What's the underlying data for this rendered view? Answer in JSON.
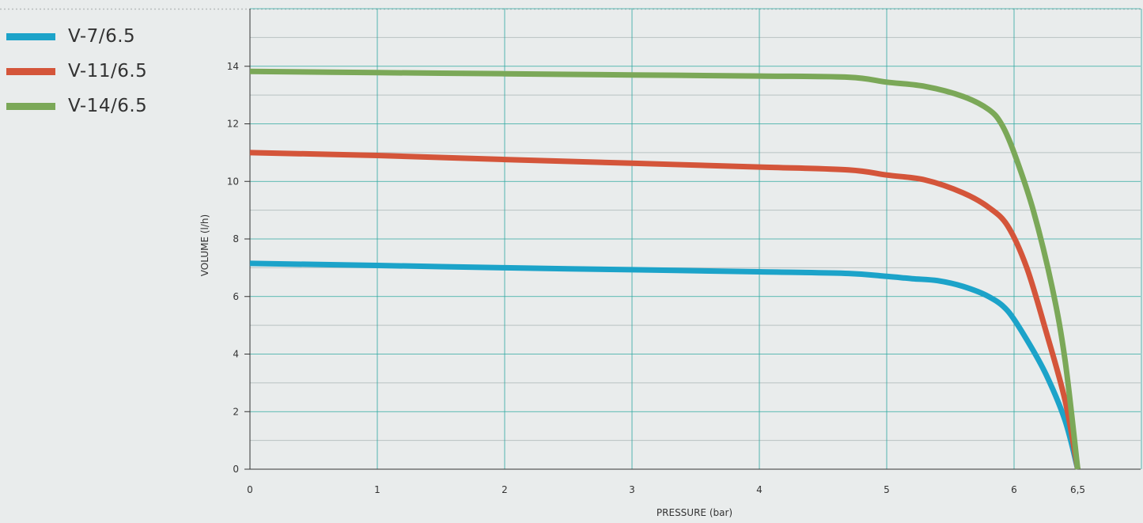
{
  "chart_data": {
    "type": "line",
    "xlabel": "PRESSURE  (bar)",
    "ylabel": "VOLUME (l/h)",
    "x_ticks": [
      "0",
      "1",
      "2",
      "3",
      "4",
      "5",
      "6",
      "6,5"
    ],
    "y_ticks": [
      "0",
      "2",
      "4",
      "6",
      "8",
      "10",
      "12",
      "14"
    ],
    "xlim": [
      0,
      7
    ],
    "ylim": [
      0,
      16
    ],
    "grid": true,
    "legend_position": "top-left",
    "series": [
      {
        "name": "V-7/6.5",
        "color": "#1ca3c9",
        "points": [
          [
            0,
            7.15
          ],
          [
            1,
            7.08
          ],
          [
            2,
            7.0
          ],
          [
            3,
            6.93
          ],
          [
            4,
            6.86
          ],
          [
            4.7,
            6.8
          ],
          [
            5.0,
            6.7
          ],
          [
            5.2,
            6.62
          ],
          [
            5.4,
            6.55
          ],
          [
            5.6,
            6.35
          ],
          [
            5.8,
            6.0
          ],
          [
            5.95,
            5.5
          ],
          [
            6.1,
            4.5
          ],
          [
            6.25,
            3.3
          ],
          [
            6.4,
            1.7
          ],
          [
            6.5,
            0
          ]
        ]
      },
      {
        "name": "V-11/6.5",
        "color": "#d4553a",
        "points": [
          [
            0,
            11.0
          ],
          [
            1,
            10.9
          ],
          [
            2,
            10.76
          ],
          [
            3,
            10.63
          ],
          [
            4,
            10.5
          ],
          [
            4.7,
            10.4
          ],
          [
            5.0,
            10.22
          ],
          [
            5.3,
            10.05
          ],
          [
            5.6,
            9.6
          ],
          [
            5.8,
            9.1
          ],
          [
            5.95,
            8.45
          ],
          [
            6.1,
            7.0
          ],
          [
            6.25,
            4.8
          ],
          [
            6.4,
            2.4
          ],
          [
            6.5,
            0
          ]
        ]
      },
      {
        "name": "V-14/6.5",
        "color": "#7ba858",
        "points": [
          [
            0,
            13.82
          ],
          [
            1,
            13.78
          ],
          [
            2,
            13.74
          ],
          [
            3,
            13.7
          ],
          [
            4,
            13.66
          ],
          [
            4.7,
            13.62
          ],
          [
            5.0,
            13.45
          ],
          [
            5.3,
            13.3
          ],
          [
            5.6,
            12.95
          ],
          [
            5.8,
            12.5
          ],
          [
            5.9,
            12.0
          ],
          [
            6.0,
            11.0
          ],
          [
            6.15,
            9.0
          ],
          [
            6.3,
            6.3
          ],
          [
            6.4,
            3.8
          ],
          [
            6.5,
            0
          ]
        ]
      }
    ]
  }
}
